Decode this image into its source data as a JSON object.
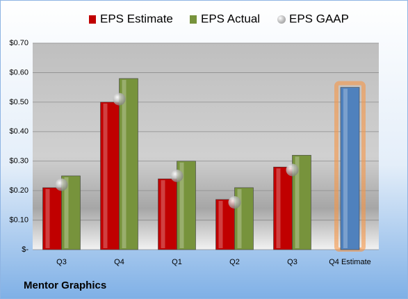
{
  "chart_data": {
    "type": "bar",
    "title": "Mentor Graphics",
    "categories": [
      "Q3",
      "Q4",
      "Q1",
      "Q2",
      "Q3",
      "Q4 Estimate"
    ],
    "series": [
      {
        "name": "EPS Estimate",
        "color": "#c00000",
        "point_colors": [
          "#c00000",
          "#c00000",
          "#c00000",
          "#c00000",
          "#c00000",
          "#4f81bd"
        ],
        "values": [
          0.21,
          0.5,
          0.24,
          0.17,
          0.28,
          0.55
        ]
      },
      {
        "name": "EPS Actual",
        "color": "#77933c",
        "values": [
          0.25,
          0.58,
          0.3,
          0.21,
          0.32,
          null
        ]
      },
      {
        "name": "EPS GAAP",
        "color": "#a6a6a6",
        "marker": "circle",
        "values": [
          0.22,
          0.51,
          0.25,
          0.16,
          0.27,
          null
        ]
      }
    ],
    "ylim": [
      0,
      0.7
    ],
    "yticks": [
      {
        "value": 0,
        "label": "$-"
      },
      {
        "value": 0.1,
        "label": "$0.10"
      },
      {
        "value": 0.2,
        "label": "$0.20"
      },
      {
        "value": 0.3,
        "label": "$0.30"
      },
      {
        "value": 0.4,
        "label": "$0.40"
      },
      {
        "value": 0.5,
        "label": "$0.50"
      },
      {
        "value": 0.6,
        "label": "$0.60"
      },
      {
        "value": 0.7,
        "label": "$0.70"
      }
    ],
    "grid": true
  }
}
